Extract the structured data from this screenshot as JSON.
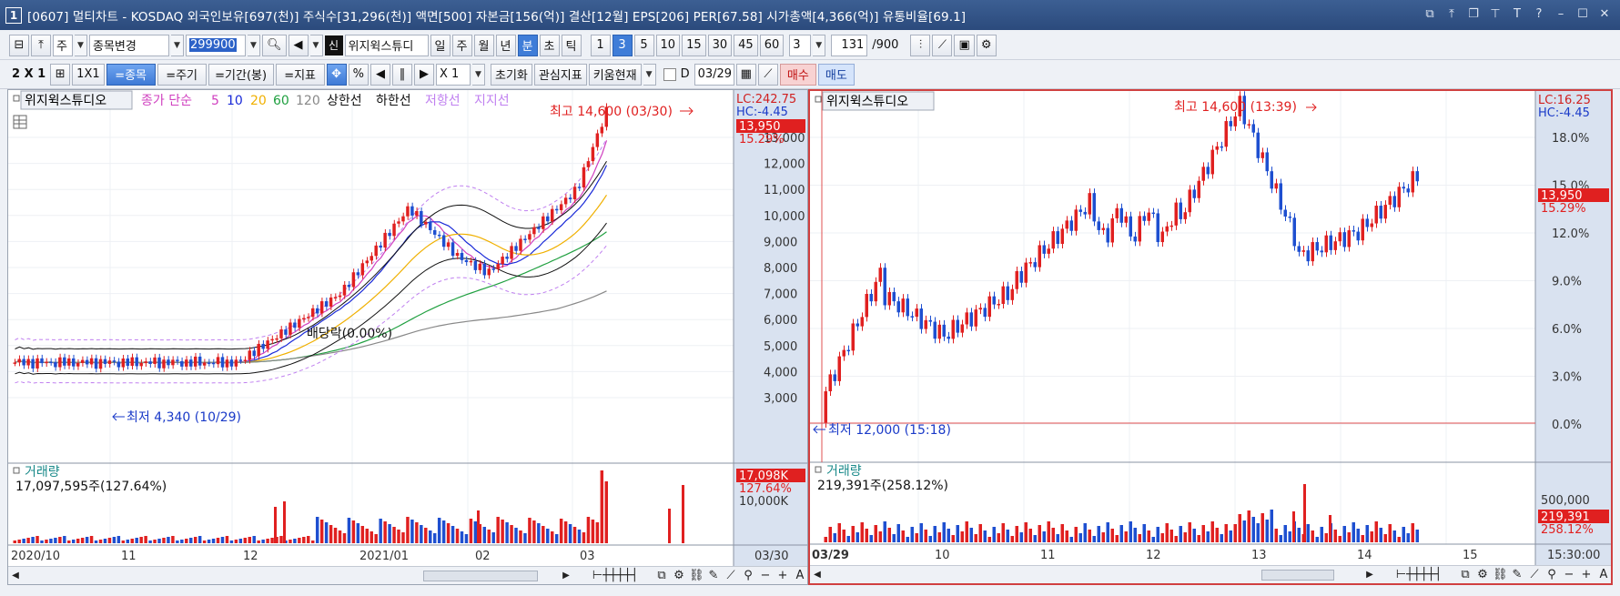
{
  "title_bar": {
    "app_number": "1",
    "title": "[0607] 멀티차트 - KOSDAQ 외국인보유[697(천)] 주식수[31,296(천)] 액면[500] 자본금[156(억)] 결산[12월] EPS[206] PER[67.58] 시가총액[4,366(억)] 유통비율[69.1]"
  },
  "toolbar1": {
    "market_label": "주",
    "stock_change_label": "종목변경",
    "code_value": "299900",
    "stock_name": "위지윅스튜디",
    "new_badge": "신",
    "period_buttons": [
      "일",
      "주",
      "월",
      "년",
      "분",
      "초",
      "틱"
    ],
    "active_period": "분",
    "minute_buttons": [
      "1",
      "3",
      "5",
      "10",
      "15",
      "30",
      "45",
      "60"
    ],
    "active_minute": "3",
    "interval_value": "3",
    "count_value": "131",
    "count_total": "/900"
  },
  "toolbar2": {
    "layout_label": "2 X 1",
    "one_by_one": "1X1",
    "stock_btn": "=종목",
    "period_btn": "=주기",
    "range_btn": "=기간(봉)",
    "indicator_btn": "=지표",
    "percent_btn": "%",
    "multiplier": "X 1",
    "reset_btn": "초기화",
    "favorite_btn": "관심지표",
    "kiwoom_btn": "키움현재",
    "d_label": "D",
    "date_value": "03/29",
    "buy_btn": "매수",
    "sell_btn": "매도"
  },
  "left_chart": {
    "stock_label": "위지윅스튜디오",
    "legend": {
      "close_label": "종가 단순",
      "ma": [
        "5",
        "10",
        "20",
        "60",
        "120"
      ],
      "upper": "상한선",
      "lower": "하한선",
      "resistance": "저항선",
      "support": "지지선"
    },
    "lc": "LC:242.75",
    "hc": "HC:-4.45",
    "current_price": "13,950",
    "current_pct": "15.29%",
    "high_annotation": "최고 14,600 (03/30)",
    "low_annotation": "최저 4,340 (10/29)",
    "dividend_annotation": "배당락(0.00%)",
    "price_axis": [
      "13,000",
      "12,000",
      "11,000",
      "10,000",
      "9,000",
      "8,000",
      "7,000",
      "6,000",
      "5,000",
      "4,000",
      "3,000"
    ],
    "volume_label": "거래량",
    "volume_value": "17,097,595주(127.64%)",
    "volume_current": "17,098K",
    "volume_pct": "127.64%",
    "volume_axis": "10,000K",
    "date_axis": [
      "2020/10",
      "11",
      "12",
      "2021/01",
      "02",
      "03"
    ],
    "date_corner": "03/30"
  },
  "right_chart": {
    "stock_label": "위지윅스튜디오",
    "lc": "LC:16.25",
    "hc": "HC:-4.45",
    "current_price": "13,950",
    "current_pct": "15.29%",
    "high_annotation": "최고 14,600 (13:39)",
    "low_annotation": "최저 12,000 (15:18)",
    "pct_axis": [
      "18.0%",
      "15.0%",
      "12.0%",
      "9.0%",
      "6.0%",
      "3.0%",
      "0.0%"
    ],
    "volume_label": "거래량",
    "volume_value": "219,391주(258.12%)",
    "volume_current": "219,391",
    "volume_pct": "258.12%",
    "volume_axis": "500,000",
    "date_axis": [
      "03/29",
      "10",
      "11",
      "12",
      "13",
      "14",
      "15"
    ],
    "date_corner": "15:30:00"
  },
  "colors": {
    "up": "#e02020",
    "down": "#1e4fd0",
    "ma5": "#d040c0",
    "ma10": "#1a2ad8",
    "ma20": "#f0b000",
    "ma60": "#20a040",
    "ma120": "#888888",
    "envelope": "#111111",
    "resistance": "#c080f0"
  }
}
